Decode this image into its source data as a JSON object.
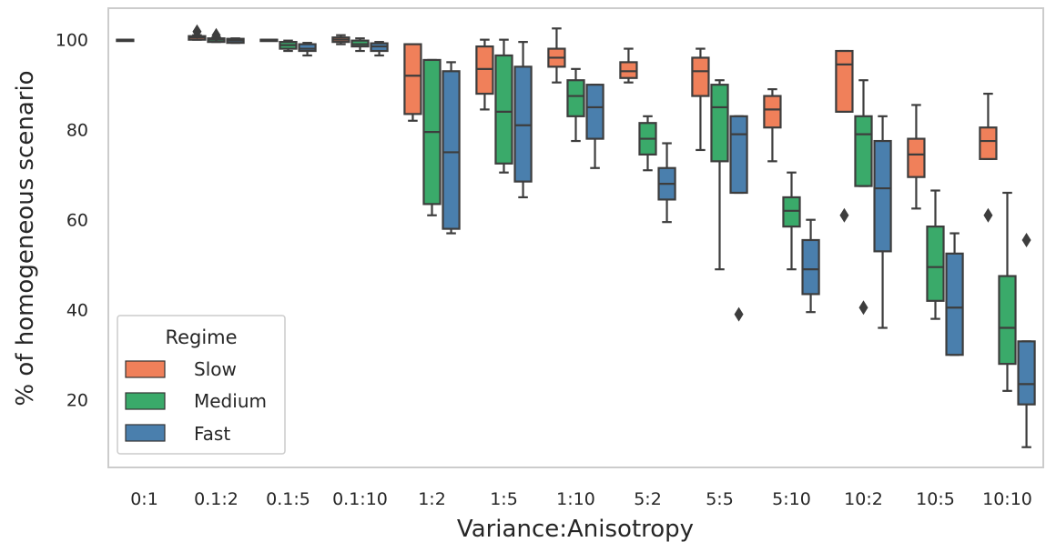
{
  "chart_data": {
    "type": "box",
    "xlabel": "Variance:Anisotropy",
    "ylabel": "% of homogeneous scenario",
    "ylim": [
      5,
      107
    ],
    "yticks": [
      20,
      40,
      60,
      80,
      100
    ],
    "categories": [
      "0:1",
      "0.1:2",
      "0.1:5",
      "0.1:10",
      "1:2",
      "1:5",
      "1:10",
      "5:2",
      "5:5",
      "5:10",
      "10:2",
      "10:5",
      "10:10"
    ],
    "legend": {
      "title": "Regime",
      "position": "lower-left"
    },
    "series": [
      {
        "name": "Slow",
        "color": "#f0805a",
        "boxes": [
          {
            "whislo": 100,
            "q1": 100,
            "med": 100,
            "q3": 100,
            "whishi": 100,
            "fliers": []
          },
          {
            "whislo": 100,
            "q1": 100,
            "med": 100.5,
            "q3": 100.8,
            "whishi": 101,
            "fliers": [
              101.8
            ]
          },
          {
            "whislo": 100,
            "q1": 100,
            "med": 100,
            "q3": 100,
            "whishi": 100,
            "fliers": []
          },
          {
            "whislo": 99,
            "q1": 99.5,
            "med": 100,
            "q3": 100.5,
            "whishi": 101,
            "fliers": []
          },
          {
            "whislo": 82,
            "q1": 83.5,
            "med": 92,
            "q3": 99,
            "whishi": 99,
            "fliers": []
          },
          {
            "whislo": 84.5,
            "q1": 88,
            "med": 93.5,
            "q3": 98.5,
            "whishi": 100,
            "fliers": []
          },
          {
            "whislo": 90.5,
            "q1": 94,
            "med": 96,
            "q3": 98,
            "whishi": 102.5,
            "fliers": []
          },
          {
            "whislo": 90.5,
            "q1": 91.5,
            "med": 93,
            "q3": 95,
            "whishi": 98,
            "fliers": []
          },
          {
            "whislo": 75.5,
            "q1": 87.5,
            "med": 93,
            "q3": 96,
            "whishi": 98,
            "fliers": []
          },
          {
            "whislo": 73,
            "q1": 80.5,
            "med": 84.5,
            "q3": 87.5,
            "whishi": 89,
            "fliers": []
          },
          {
            "whislo": 84,
            "q1": 84,
            "med": 94.5,
            "q3": 97.5,
            "whishi": 97.5,
            "fliers": [
              61
            ]
          },
          {
            "whislo": 62.5,
            "q1": 69.5,
            "med": 74.5,
            "q3": 78,
            "whishi": 85.5,
            "fliers": []
          },
          {
            "whislo": 73.5,
            "q1": 73.5,
            "med": 77.5,
            "q3": 80.5,
            "whishi": 88,
            "fliers": [
              61
            ]
          }
        ]
      },
      {
        "name": "Medium",
        "color": "#3aaa6a",
        "boxes": [
          null,
          {
            "whislo": 99.5,
            "q1": 99.5,
            "med": 100,
            "q3": 100.3,
            "whishi": 100.5,
            "fliers": [
              101
            ]
          },
          {
            "whislo": 97.5,
            "q1": 98,
            "med": 98.8,
            "q3": 99.5,
            "whishi": 99.8,
            "fliers": []
          },
          {
            "whislo": 97.5,
            "q1": 98.5,
            "med": 99,
            "q3": 99.8,
            "whishi": 100.3,
            "fliers": []
          },
          {
            "whislo": 61,
            "q1": 63.5,
            "med": 79.5,
            "q3": 95.5,
            "whishi": 95.5,
            "fliers": []
          },
          {
            "whislo": 70.5,
            "q1": 72.5,
            "med": 84,
            "q3": 96.5,
            "whishi": 100,
            "fliers": []
          },
          {
            "whislo": 77.5,
            "q1": 83,
            "med": 87.5,
            "q3": 91,
            "whishi": 93.5,
            "fliers": []
          },
          {
            "whislo": 71,
            "q1": 74.5,
            "med": 78,
            "q3": 81.5,
            "whishi": 83,
            "fliers": []
          },
          {
            "whislo": 49,
            "q1": 73,
            "med": 85,
            "q3": 90,
            "whishi": 91,
            "fliers": []
          },
          {
            "whislo": 49,
            "q1": 58.5,
            "med": 62,
            "q3": 65,
            "whishi": 70.5,
            "fliers": []
          },
          {
            "whislo": 67.5,
            "q1": 67.5,
            "med": 79,
            "q3": 83,
            "whishi": 91,
            "fliers": [
              40.5
            ]
          },
          {
            "whislo": 38,
            "q1": 42,
            "med": 49.5,
            "q3": 58.5,
            "whishi": 66.5,
            "fliers": []
          },
          {
            "whislo": 22,
            "q1": 28,
            "med": 36,
            "q3": 47.5,
            "whishi": 66,
            "fliers": []
          }
        ]
      },
      {
        "name": "Fast",
        "color": "#4a7fad",
        "boxes": [
          null,
          {
            "whislo": 99.3,
            "q1": 99.3,
            "med": 99.8,
            "q3": 100.2,
            "whishi": 100.3,
            "fliers": []
          },
          {
            "whislo": 96.5,
            "q1": 97.5,
            "med": 98,
            "q3": 99,
            "whishi": 99.3,
            "fliers": []
          },
          {
            "whislo": 96.5,
            "q1": 97.5,
            "med": 98.5,
            "q3": 99.2,
            "whishi": 99.5,
            "fliers": []
          },
          {
            "whislo": 57,
            "q1": 58,
            "med": 75,
            "q3": 93,
            "whishi": 95,
            "fliers": []
          },
          {
            "whislo": 65,
            "q1": 68.5,
            "med": 81,
            "q3": 94,
            "whishi": 99.5,
            "fliers": []
          },
          {
            "whislo": 71.5,
            "q1": 78,
            "med": 85,
            "q3": 90,
            "whishi": 90,
            "fliers": []
          },
          {
            "whislo": 59.5,
            "q1": 64.5,
            "med": 68,
            "q3": 71.5,
            "whishi": 77,
            "fliers": []
          },
          {
            "whislo": 66,
            "q1": 66,
            "med": 79,
            "q3": 83,
            "whishi": 83,
            "fliers": [
              39
            ]
          },
          {
            "whislo": 39.5,
            "q1": 43.5,
            "med": 49,
            "q3": 55.5,
            "whishi": 60,
            "fliers": []
          },
          {
            "whislo": 36,
            "q1": 53,
            "med": 67,
            "q3": 77.5,
            "whishi": 83,
            "fliers": []
          },
          {
            "whislo": 30,
            "q1": 30,
            "med": 40.5,
            "q3": 52.5,
            "whishi": 57,
            "fliers": []
          },
          {
            "whislo": 9.5,
            "q1": 19,
            "med": 23.5,
            "q3": 33,
            "whishi": 33,
            "fliers": [
              55.5
            ]
          }
        ]
      }
    ]
  }
}
